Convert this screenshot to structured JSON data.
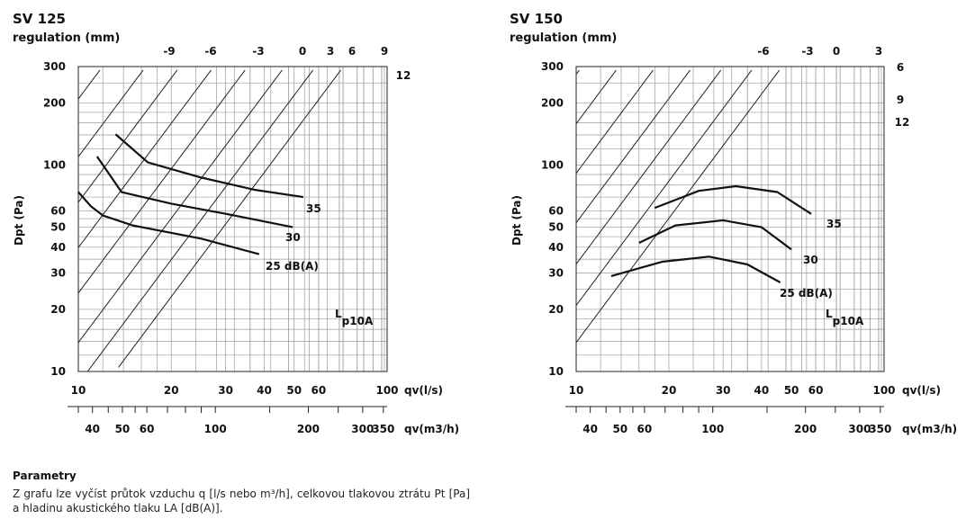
{
  "chart_data": [
    {
      "type": "line",
      "title": "SV 125",
      "subtitle": "regulation (mm)",
      "ylabel": "Dpt (Pa)",
      "xlabel": "qv(l/s)",
      "xlabel2": "qv(m3/h)",
      "xscale": "log",
      "yscale": "log",
      "xlim": [
        10,
        100
      ],
      "ylim": [
        10,
        300
      ],
      "grid": true,
      "y_ticks": [
        "300",
        "200",
        "100",
        "60",
        "50",
        "40",
        "30",
        "20",
        "10"
      ],
      "x_ticks": [
        "10",
        "20",
        "30",
        "40",
        "50",
        "60",
        "100"
      ],
      "x2_ticks": [
        "40",
        "50",
        "60",
        "100",
        "200",
        "300",
        "350"
      ],
      "reg_ticks": [
        "-9",
        "-6",
        "-3",
        "0",
        "3",
        "6",
        "9",
        "12"
      ],
      "lp_label": "Lp10A",
      "series": [
        {
          "name": "35",
          "x": [
            13.2,
            16.8,
            25,
            37,
            53.5
          ],
          "y": [
            141,
            103,
            87,
            76,
            70
          ]
        },
        {
          "name": "30",
          "x": [
            11.5,
            13.8,
            20,
            32,
            49.5
          ],
          "y": [
            110,
            74,
            65,
            57,
            50
          ]
        },
        {
          "name": "25 dB(A)",
          "x": [
            10,
            11,
            12,
            15,
            25,
            38.5
          ],
          "y": [
            74,
            63,
            57,
            51,
            44,
            37
          ]
        }
      ]
    },
    {
      "type": "line",
      "title": "SV 150",
      "subtitle": "regulation (mm)",
      "ylabel": "Dpt (Pa)",
      "xlabel": "qv(l/s)",
      "xlabel2": "qv(m3/h)",
      "xscale": "log",
      "yscale": "log",
      "xlim": [
        10,
        100
      ],
      "ylim": [
        10,
        300
      ],
      "grid": true,
      "y_ticks": [
        "300",
        "200",
        "100",
        "60",
        "50",
        "40",
        "30",
        "20",
        "10"
      ],
      "x_ticks": [
        "10",
        "20",
        "30",
        "40",
        "50",
        "60",
        "100"
      ],
      "x2_ticks": [
        "40",
        "50",
        "60",
        "100",
        "200",
        "300",
        "350"
      ],
      "reg_ticks": [
        "-6",
        "-3",
        "0",
        "3",
        "6",
        "9",
        "12"
      ],
      "lp_label": "Lp10A",
      "series": [
        {
          "name": "35",
          "x": [
            18,
            25,
            33,
            45,
            58
          ],
          "y": [
            62,
            75,
            79,
            74,
            58
          ]
        },
        {
          "name": "30",
          "x": [
            16,
            21,
            30,
            40,
            50
          ],
          "y": [
            42,
            51,
            54,
            50,
            39
          ]
        },
        {
          "name": "25 dB(A)",
          "x": [
            13,
            19,
            27,
            36,
            46
          ],
          "y": [
            29,
            34,
            36,
            33,
            27
          ]
        }
      ]
    }
  ],
  "params": {
    "heading": "Parametry",
    "text": "Z grafu lze vyčíst průtok vzduchu q [l/s nebo m³/h], celkovou tlakovou ztrátu Pt [Pa] a hladinu akustického tlaku LA [dB(A)]."
  }
}
